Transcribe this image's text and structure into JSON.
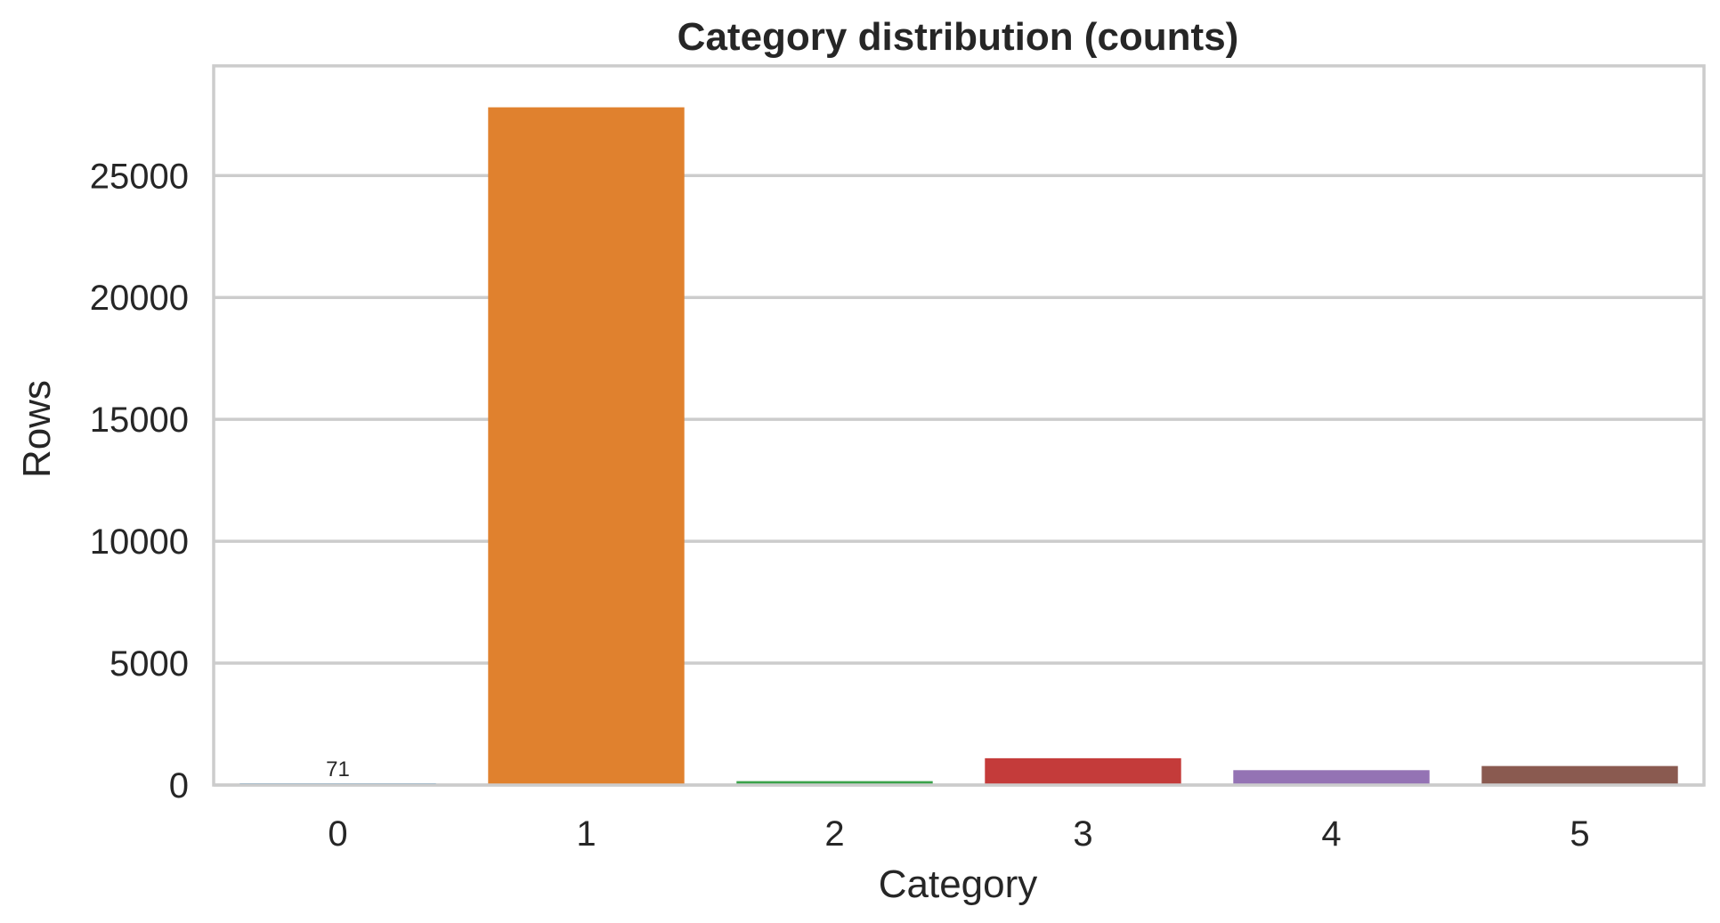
{
  "chart_data": {
    "type": "bar",
    "title": "Category distribution (counts)",
    "xlabel": "Category",
    "ylabel": "Rows",
    "categories": [
      "0",
      "1",
      "2",
      "3",
      "4",
      "5"
    ],
    "values": [
      71,
      27800,
      160,
      1100,
      610,
      780
    ],
    "value_labels": [
      "71",
      "",
      "",
      "",
      "",
      ""
    ],
    "colors": [
      "#1f77b4",
      "#e0812e",
      "#3aa24a",
      "#c43b3a",
      "#9473b4",
      "#8a5a50"
    ],
    "ylim": [
      0,
      29500
    ],
    "yticks": [
      0,
      5000,
      10000,
      15000,
      20000,
      25000
    ],
    "grid": true,
    "legend": "none"
  }
}
